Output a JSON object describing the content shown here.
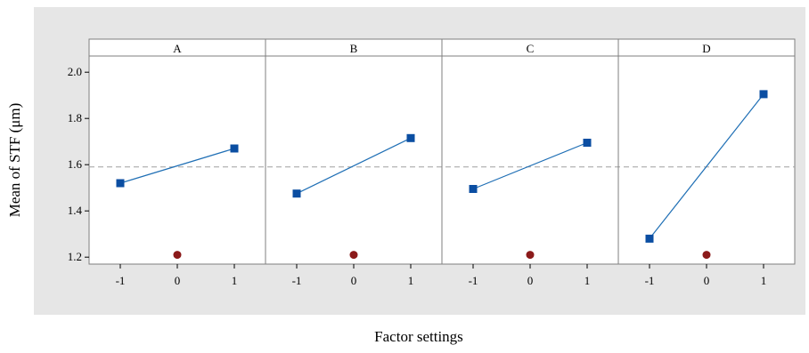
{
  "chart_data": {
    "type": "line",
    "ylabel": "Mean of STF (μm)",
    "xlabel": "Factor settings",
    "ylim": [
      1.17,
      2.07
    ],
    "y_ticks": [
      "1.2",
      "1.4",
      "1.6",
      "1.8",
      "2.0"
    ],
    "x_ticks": [
      "-1",
      "0",
      "1"
    ],
    "reference_line": 1.59,
    "center_point": 1.21,
    "grid": false,
    "panels": [
      {
        "name": "A",
        "x": [
          -1,
          1
        ],
        "values": [
          1.52,
          1.67
        ]
      },
      {
        "name": "B",
        "x": [
          -1,
          1
        ],
        "values": [
          1.475,
          1.715
        ]
      },
      {
        "name": "C",
        "x": [
          -1,
          1
        ],
        "values": [
          1.495,
          1.695
        ]
      },
      {
        "name": "D",
        "x": [
          -1,
          1
        ],
        "values": [
          1.28,
          1.905
        ]
      }
    ],
    "colors": {
      "line": "#1f6fb5",
      "marker": "#0b4ea2",
      "center_point": "#8b1a1a",
      "reference": "#a0a0a0",
      "frame": "#e6e6e6",
      "plot_bg": "#ffffff"
    }
  }
}
